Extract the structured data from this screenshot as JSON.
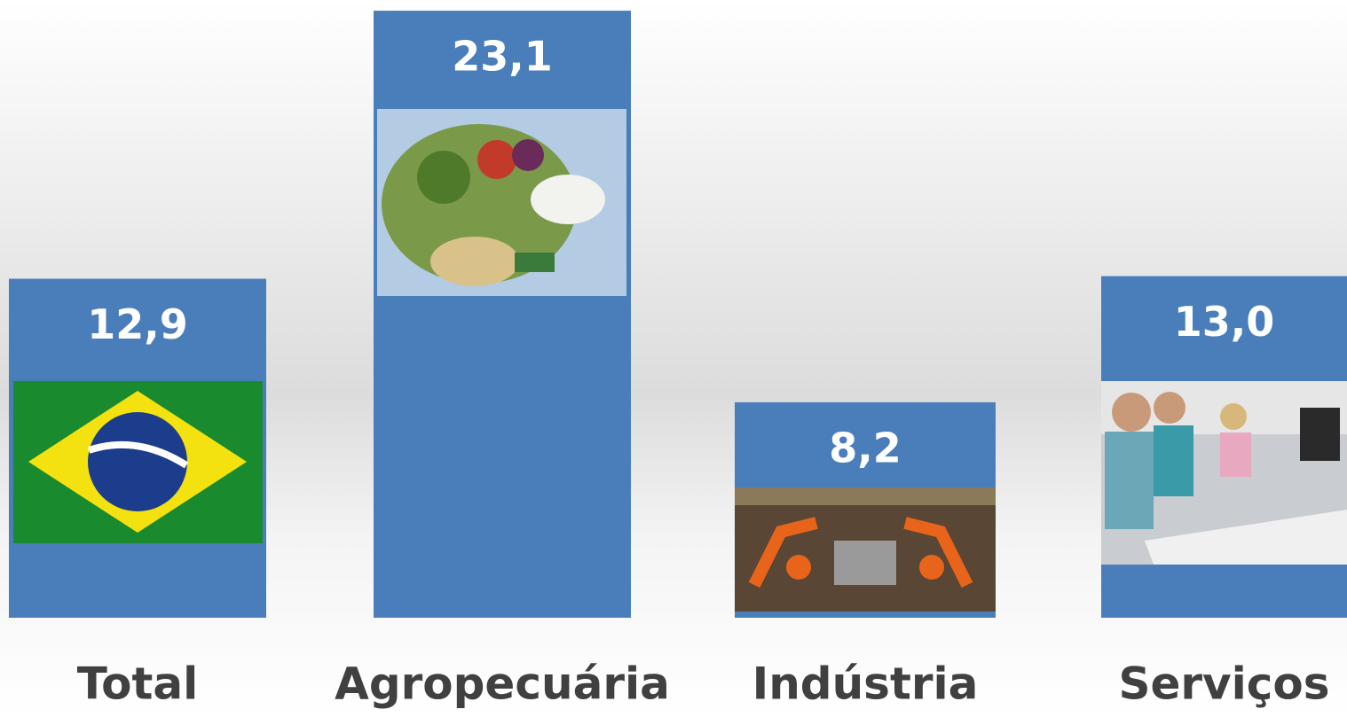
{
  "chart_data": {
    "type": "bar",
    "categories": [
      "Total",
      "Agropecuária",
      "Indústria",
      "Serviços"
    ],
    "values": [
      12.9,
      23.1,
      8.2,
      13.0
    ],
    "value_labels": [
      "12,9",
      "23,1",
      "8,2",
      "13,0"
    ],
    "color": "#4a7ebb"
  }
}
